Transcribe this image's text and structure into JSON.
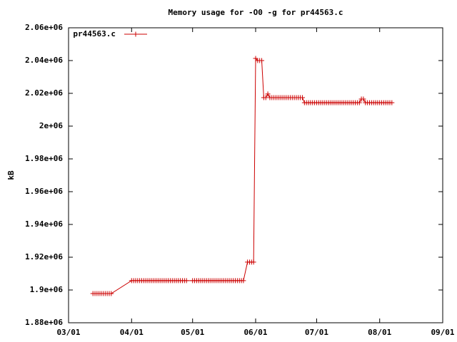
{
  "chart_data": {
    "type": "line",
    "title": "Memory usage for -O0 -g for pr44563.c",
    "ylabel": "kB",
    "legend": "top-left",
    "x": [
      "03/13",
      "03/14",
      "03/15",
      "03/16",
      "03/17",
      "03/18",
      "03/19",
      "03/20",
      "03/21",
      "03/22",
      "04/01",
      "04/02",
      "04/03",
      "04/04",
      "04/05",
      "04/06",
      "04/07",
      "04/08",
      "04/09",
      "04/10",
      "04/11",
      "04/12",
      "04/13",
      "04/14",
      "04/15",
      "04/16",
      "04/17",
      "04/18",
      "04/19",
      "04/20",
      "04/21",
      "04/22",
      "04/23",
      "04/24",
      "04/25",
      "04/26",
      "04/27",
      "04/28",
      "05/01",
      "05/02",
      "05/03",
      "05/04",
      "05/05",
      "05/06",
      "05/07",
      "05/08",
      "05/09",
      "05/10",
      "05/11",
      "05/12",
      "05/13",
      "05/14",
      "05/15",
      "05/16",
      "05/17",
      "05/18",
      "05/19",
      "05/20",
      "05/21",
      "05/22",
      "05/23",
      "05/24",
      "05/25",
      "05/26",
      "05/28",
      "05/29",
      "05/30",
      "05/31",
      "06/01",
      "06/02",
      "06/03",
      "06/04",
      "06/05",
      "06/06",
      "06/07",
      "06/08",
      "06/09",
      "06/10",
      "06/11",
      "06/12",
      "06/13",
      "06/14",
      "06/15",
      "06/16",
      "06/17",
      "06/18",
      "06/19",
      "06/20",
      "06/21",
      "06/22",
      "06/23",
      "06/24",
      "06/25",
      "06/26",
      "06/27",
      "06/28",
      "06/29",
      "06/30",
      "07/01",
      "07/02",
      "07/03",
      "07/04",
      "07/05",
      "07/06",
      "07/07",
      "07/08",
      "07/09",
      "07/10",
      "07/11",
      "07/12",
      "07/13",
      "07/14",
      "07/15",
      "07/16",
      "07/17",
      "07/18",
      "07/19",
      "07/20",
      "07/21",
      "07/22",
      "07/23",
      "07/24",
      "07/25",
      "07/26",
      "07/27",
      "07/28",
      "07/29",
      "07/30",
      "07/31",
      "08/01",
      "08/02",
      "08/03",
      "08/04",
      "08/05",
      "08/06",
      "08/07"
    ],
    "series": [
      {
        "name": "pr44563.c",
        "color": "#cc0000",
        "values": [
          1897800,
          1897800,
          1897800,
          1897800,
          1897800,
          1897800,
          1897800,
          1897800,
          1897800,
          1897800,
          1905700,
          1905700,
          1905700,
          1905700,
          1905700,
          1905700,
          1905700,
          1905700,
          1905700,
          1905700,
          1905700,
          1905700,
          1905700,
          1905700,
          1905700,
          1905700,
          1905700,
          1905700,
          1905700,
          1905700,
          1905700,
          1905700,
          1905700,
          1905700,
          1905700,
          1905700,
          1905700,
          1905700,
          1905700,
          1905700,
          1905700,
          1905700,
          1905700,
          1905700,
          1905700,
          1905700,
          1905700,
          1905700,
          1905700,
          1905700,
          1905700,
          1905700,
          1905700,
          1905700,
          1905700,
          1905700,
          1905700,
          1905700,
          1905700,
          1905700,
          1905700,
          1905700,
          1905700,
          1905700,
          1917000,
          1917000,
          1917000,
          1917000,
          2041300,
          2040000,
          2040000,
          2040000,
          2017400,
          2017400,
          2019600,
          2017400,
          2017400,
          2017400,
          2017400,
          2017400,
          2017400,
          2017400,
          2017400,
          2017400,
          2017400,
          2017400,
          2017400,
          2017400,
          2017400,
          2017400,
          2017400,
          2017400,
          2014300,
          2014300,
          2014300,
          2014300,
          2014300,
          2014300,
          2014300,
          2014300,
          2014300,
          2014300,
          2014300,
          2014300,
          2014300,
          2014300,
          2014300,
          2014300,
          2014300,
          2014300,
          2014300,
          2014300,
          2014300,
          2014300,
          2014300,
          2014300,
          2014300,
          2014300,
          2014300,
          2014300,
          2016500,
          2016500,
          2014300,
          2014300,
          2014300,
          2014300,
          2014300,
          2014300,
          2014300,
          2014300,
          2014300,
          2014300,
          2014300,
          2014300,
          2014300,
          2014300
        ]
      }
    ],
    "xlim": [
      "03/01",
      "09/01"
    ],
    "xticks": [
      "03/01",
      "04/01",
      "05/01",
      "06/01",
      "07/01",
      "08/01",
      "09/01"
    ],
    "ylim": [
      1880000,
      2060000
    ],
    "yticks": [
      {
        "value": 1880000,
        "label": "1.88e+06"
      },
      {
        "value": 1900000,
        "label": "1.9e+06"
      },
      {
        "value": 1920000,
        "label": "1.92e+06"
      },
      {
        "value": 1940000,
        "label": "1.94e+06"
      },
      {
        "value": 1960000,
        "label": "1.96e+06"
      },
      {
        "value": 1980000,
        "label": "1.98e+06"
      },
      {
        "value": 2000000,
        "label": "2e+06"
      },
      {
        "value": 2020000,
        "label": "2.02e+06"
      },
      {
        "value": 2040000,
        "label": "2.04e+06"
      },
      {
        "value": 2060000,
        "label": "2.06e+06"
      }
    ]
  }
}
